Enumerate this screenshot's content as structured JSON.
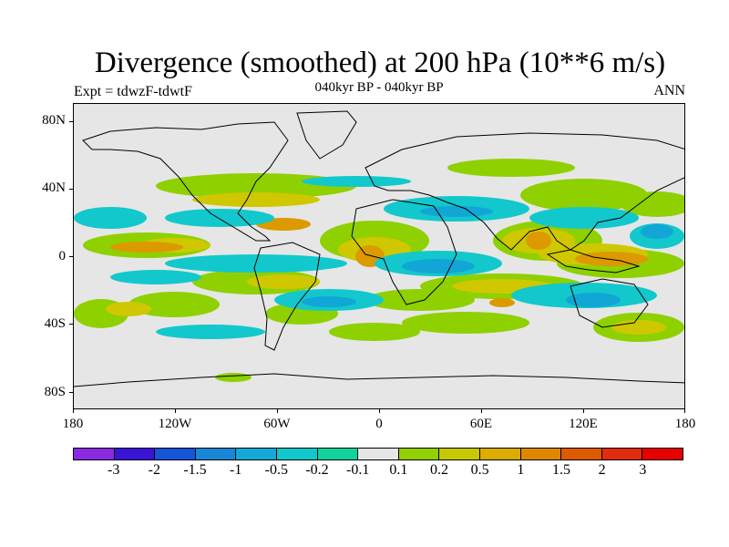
{
  "title": "Divergence (smoothed) at 200 hPa (10**6 m/s)",
  "subtitle": "040kyr BP - 040kyr BP",
  "experiment": "Expt = tdwzF-tdwtF",
  "season": "ANN",
  "map": {
    "background_color": "#e6e6e6",
    "lat_labels": [
      "80N",
      "40N",
      "0",
      "40S",
      "80S"
    ],
    "lon_labels": [
      "180",
      "120W",
      "60W",
      "0",
      "60E",
      "120E",
      "180"
    ]
  },
  "colorbar": {
    "colors": [
      "#8a2be2",
      "#3a14d6",
      "#1555d8",
      "#1a87d6",
      "#11aad6",
      "#10c8cc",
      "#12d49a",
      "#e6e6e6",
      "#93d000",
      "#c8c800",
      "#dcac00",
      "#de8800",
      "#de5a00",
      "#e22c10",
      "#e60000"
    ],
    "labels": [
      "-3",
      "-2",
      "-1.5",
      "-1",
      "-0.5",
      "-0.2",
      "-0.1",
      "0.1",
      "0.2",
      "0.5",
      "1",
      "1.5",
      "2",
      "3"
    ]
  }
}
